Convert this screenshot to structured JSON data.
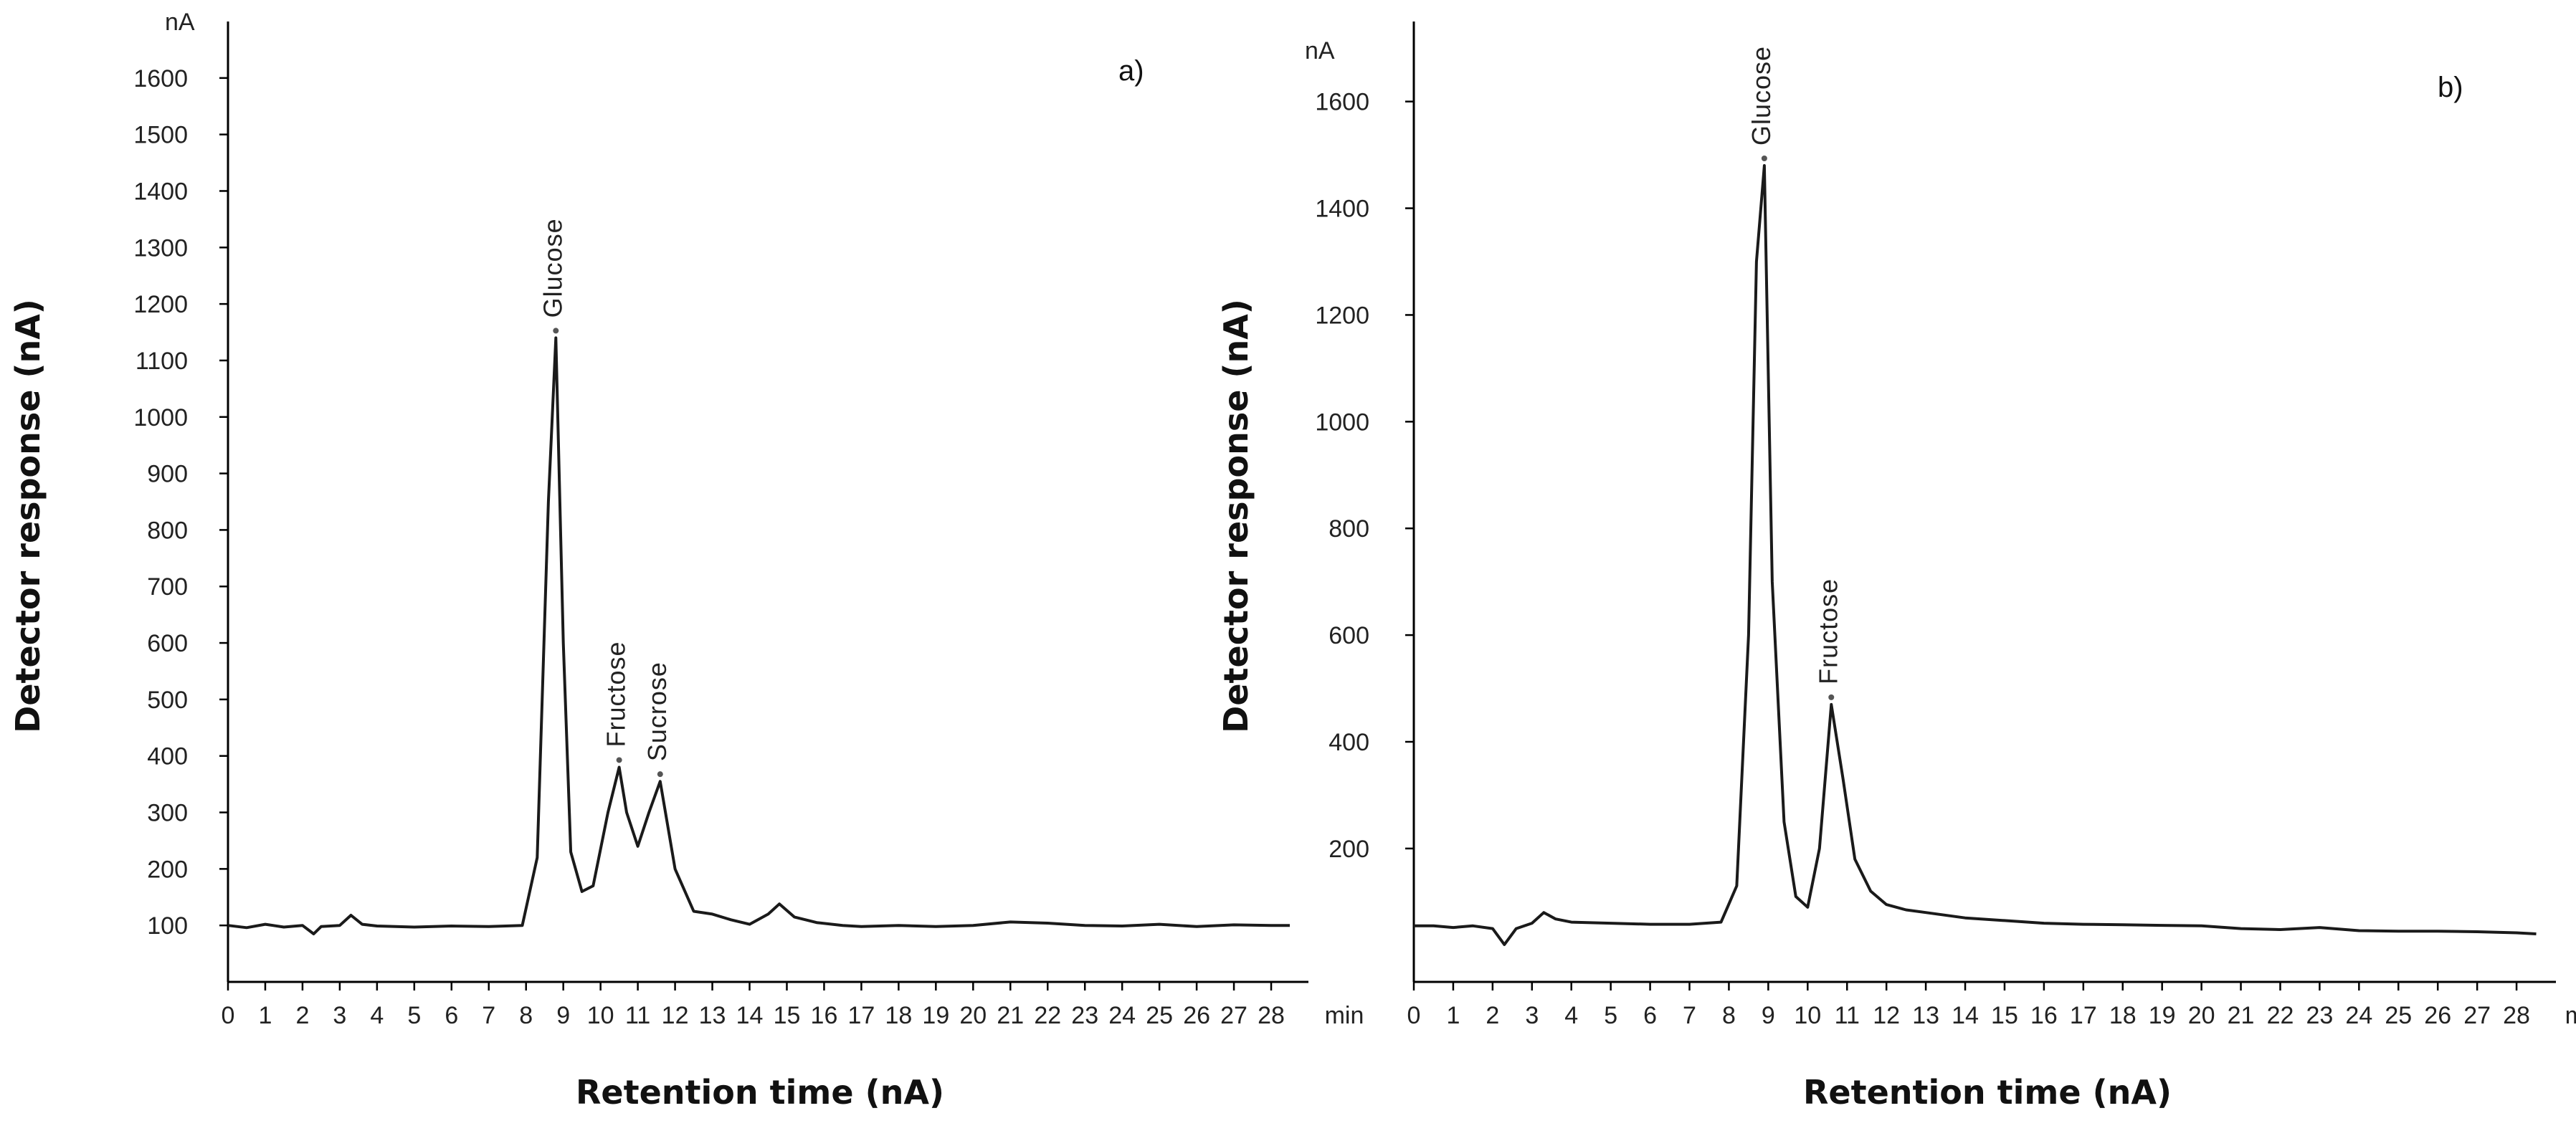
{
  "chart_data": [
    {
      "type": "line",
      "panel_label": "a)",
      "ylabel": "Detector response (nA)",
      "xlabel": "Retention time (nA)",
      "y_unit": "nA",
      "x_unit": "min",
      "xlim": [
        0,
        29
      ],
      "ylim": [
        0,
        1700
      ],
      "xticks": [
        "0",
        "1",
        "2",
        "3",
        "4",
        "5",
        "6",
        "7",
        "8",
        "9",
        "10",
        "11",
        "12",
        "13",
        "14",
        "15",
        "16",
        "17",
        "18",
        "19",
        "20",
        "21",
        "22",
        "23",
        "24",
        "25",
        "26",
        "27",
        "28"
      ],
      "yticks": [
        "100",
        "200",
        "300",
        "400",
        "500",
        "600",
        "700",
        "800",
        "900",
        "1000",
        "1100",
        "1200",
        "1300",
        "1400",
        "1500",
        "1600"
      ],
      "series": [
        {
          "x": [
            0,
            0.5,
            1.0,
            1.5,
            2.0,
            2.3,
            2.5,
            3.0,
            3.3,
            3.6,
            4.0,
            5.0,
            6.0,
            7.0,
            7.9,
            8.3,
            8.6,
            8.8,
            9.0,
            9.2,
            9.5,
            9.8,
            10.2,
            10.5,
            10.7,
            11.0,
            11.3,
            11.6,
            12.0,
            12.5,
            13.0,
            13.5,
            14.0,
            14.5,
            14.8,
            15.2,
            15.8,
            16.5,
            17.0,
            18.0,
            19.0,
            20.0,
            21.0,
            22.0,
            23.0,
            24.0,
            25.0,
            26.0,
            27.0,
            28.0,
            28.5
          ],
          "y": [
            100,
            96,
            102,
            97,
            100,
            85,
            98,
            100,
            118,
            102,
            99,
            97,
            99,
            98,
            100,
            220,
            850,
            1140,
            600,
            230,
            160,
            170,
            300,
            380,
            300,
            240,
            300,
            355,
            200,
            125,
            120,
            110,
            102,
            120,
            138,
            115,
            105,
            100,
            98,
            100,
            98,
            100,
            106,
            104,
            100,
            99,
            102,
            98,
            101,
            100,
            100
          ]
        }
      ],
      "peaks": [
        {
          "label": "Glucose",
          "x": 8.8,
          "y": 1140
        },
        {
          "label": "Fructose",
          "x": 10.5,
          "y": 380
        },
        {
          "label": "Sucrose",
          "x": 11.6,
          "y": 355
        }
      ]
    },
    {
      "type": "line",
      "panel_label": "b)",
      "ylabel": "Detector response (nA)",
      "xlabel": "Retention time (nA)",
      "y_unit": "nA",
      "x_unit": "min",
      "xlim": [
        0,
        29
      ],
      "ylim": [
        -50,
        1750
      ],
      "xticks": [
        "0",
        "1",
        "2",
        "3",
        "4",
        "5",
        "6",
        "7",
        "8",
        "9",
        "10",
        "11",
        "12",
        "13",
        "14",
        "15",
        "16",
        "17",
        "18",
        "19",
        "20",
        "21",
        "22",
        "23",
        "24",
        "25",
        "26",
        "27",
        "28"
      ],
      "yticks": [
        "200",
        "400",
        "600",
        "800",
        "1000",
        "1200",
        "1400",
        "1600"
      ],
      "series": [
        {
          "x": [
            0,
            0.5,
            1.0,
            1.5,
            2.0,
            2.3,
            2.6,
            3.0,
            3.3,
            3.6,
            4.0,
            5.0,
            6.0,
            7.0,
            7.8,
            8.2,
            8.5,
            8.7,
            8.9,
            9.1,
            9.4,
            9.7,
            10.0,
            10.3,
            10.6,
            10.9,
            11.2,
            11.6,
            12.0,
            12.5,
            13.0,
            14.0,
            15.0,
            16.0,
            17.0,
            18.0,
            19.0,
            20.0,
            21.0,
            22.0,
            23.0,
            24.0,
            25.0,
            26.0,
            27.0,
            28.0,
            28.5
          ],
          "y": [
            55,
            55,
            52,
            55,
            50,
            20,
            50,
            60,
            80,
            68,
            62,
            60,
            58,
            58,
            62,
            130,
            600,
            1300,
            1480,
            700,
            250,
            110,
            90,
            200,
            470,
            330,
            180,
            120,
            95,
            85,
            80,
            70,
            65,
            60,
            58,
            57,
            56,
            55,
            50,
            48,
            52,
            46,
            45,
            45,
            44,
            42,
            40
          ]
        }
      ],
      "peaks": [
        {
          "label": "Glucose",
          "x": 8.9,
          "y": 1480
        },
        {
          "label": "Fructose",
          "x": 10.6,
          "y": 470
        }
      ]
    }
  ]
}
